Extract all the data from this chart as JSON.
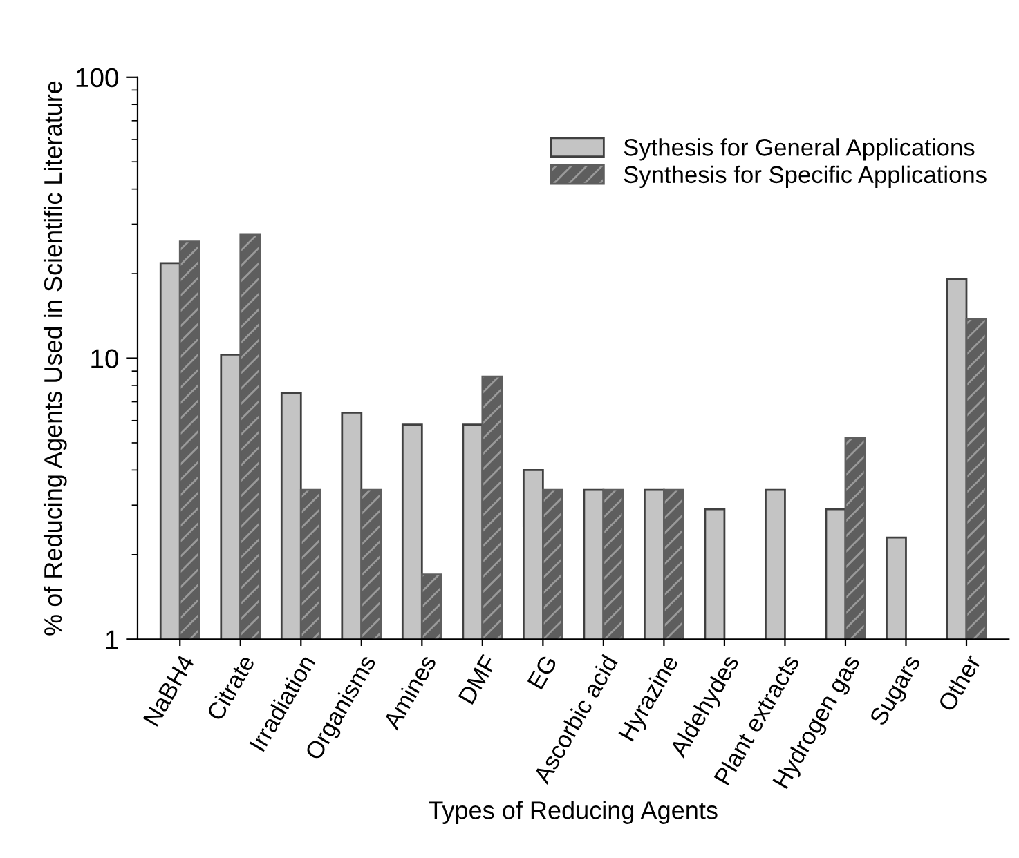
{
  "chart_data": {
    "type": "bar",
    "xlabel": "Types of Reducing Agents",
    "ylabel": "% of Reducing Agents Used in Scientific Literature",
    "categories": [
      "NaBH4",
      "Citrate",
      "Irradiation",
      "Organisms",
      "Amines",
      "DMF",
      "EG",
      "Ascorbic acid",
      "Hyrazine",
      "Aldehydes",
      "Plant extracts",
      "Hydrogen gas",
      "Sugars",
      "Other"
    ],
    "series": [
      {
        "name": "Sythesis for General Applications",
        "color": "#c4c4c4",
        "values": [
          21.8,
          10.3,
          7.5,
          6.4,
          5.8,
          5.8,
          4.0,
          3.4,
          3.4,
          2.9,
          3.4,
          2.9,
          2.3,
          19.1
        ]
      },
      {
        "name": "Synthesis for Specific Applications",
        "color": "#5e5e5e",
        "values": [
          26.0,
          27.5,
          3.4,
          3.4,
          1.7,
          8.6,
          3.4,
          3.4,
          3.4,
          null,
          null,
          5.2,
          null,
          13.8
        ]
      }
    ],
    "log": "y",
    "ylim": [
      1,
      100
    ],
    "yticks": [
      1,
      10,
      100
    ],
    "grid": false,
    "legend": "top right"
  }
}
